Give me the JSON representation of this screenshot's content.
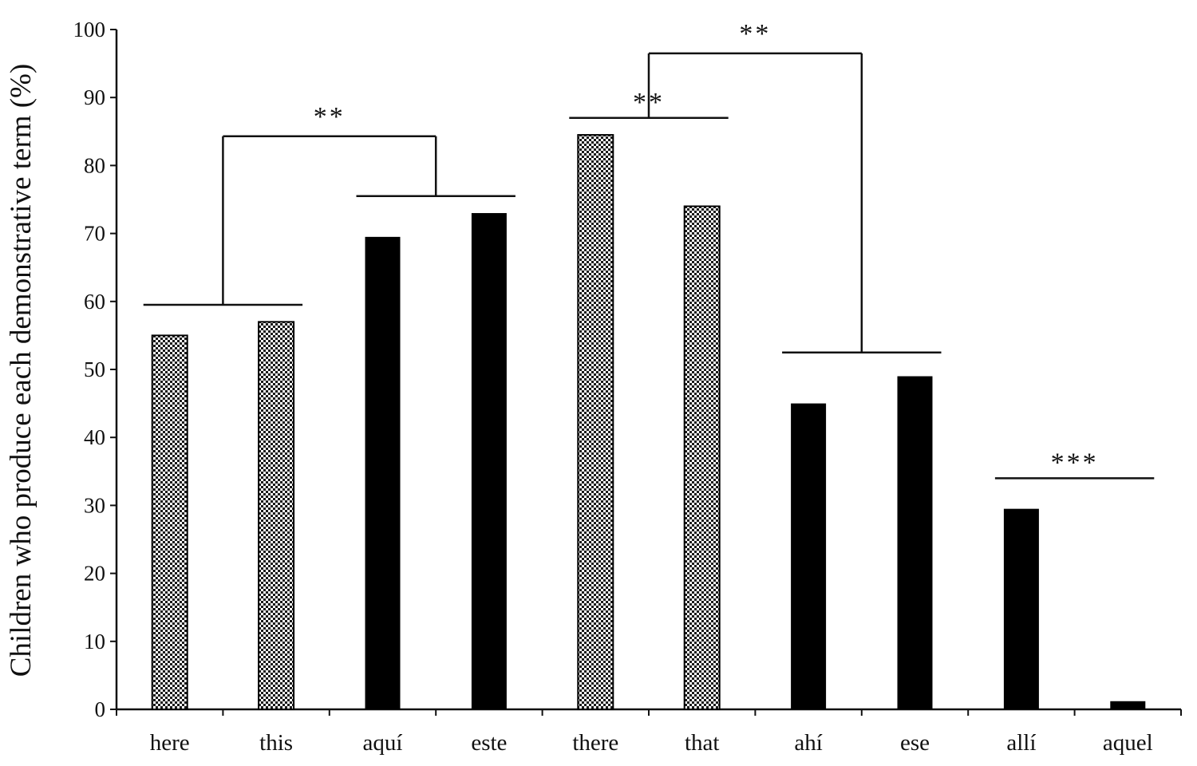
{
  "chart_data": {
    "type": "bar",
    "title": "",
    "xlabel": "",
    "ylabel": "Children who produce each demonstrative term (%)",
    "ylim": [
      0,
      100
    ],
    "yticks": [
      "0",
      "10",
      "20",
      "30",
      "40",
      "50",
      "60",
      "70",
      "80",
      "90",
      "100"
    ],
    "grid": false,
    "legend": "none",
    "categories": [
      "here",
      "this",
      "aquí",
      "este",
      "there",
      "that",
      "ahí",
      "ese",
      "allí",
      "aquel"
    ],
    "values": [
      55,
      57,
      69.5,
      73,
      84.5,
      74,
      45,
      49,
      29.5,
      1.2
    ],
    "fills": [
      "checkered",
      "checkered",
      "solid",
      "solid",
      "checkered",
      "checkered",
      "solid",
      "solid",
      "solid",
      "solid"
    ],
    "colors": {
      "solid": "#000000",
      "checker_dark": "#1a1a1a",
      "checker_light": "#ffffff"
    },
    "significance": [
      {
        "label": "**",
        "type": "line",
        "cats": [
          4,
          5
        ],
        "y": 87
      },
      {
        "label": "***",
        "type": "line",
        "cats": [
          8,
          9
        ],
        "y": 34
      },
      {
        "label": "**",
        "type": "bracket",
        "left": {
          "cats": [
            0,
            1
          ],
          "y": 59.5
        },
        "right": {
          "cats": [
            2,
            3
          ],
          "y": 75.5
        },
        "top": 84.3
      },
      {
        "label": "**",
        "type": "bracket",
        "left": {
          "cats": [
            4,
            5
          ],
          "y": 87
        },
        "right": {
          "cats": [
            6,
            7
          ],
          "y": 52.5
        },
        "top": 96.5
      }
    ]
  }
}
